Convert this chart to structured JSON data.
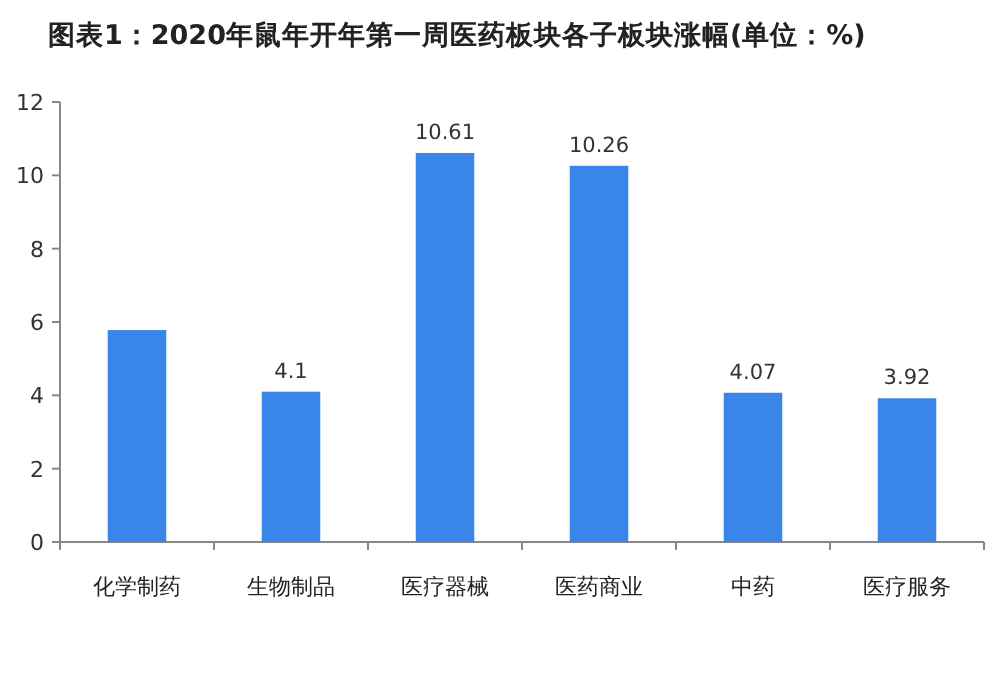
{
  "chart_data": {
    "type": "bar",
    "title": "图表1：2020年鼠年开年第一周医药板块各子板块涨幅(单位：%)",
    "categories": [
      "化学制药",
      "生物制品",
      "医疗器械",
      "医药商业",
      "中药",
      "医疗服务"
    ],
    "values": [
      5.78,
      4.1,
      10.61,
      10.26,
      4.07,
      3.92
    ],
    "value_labels": [
      null,
      "4.1",
      "10.61",
      "10.26",
      "4.07",
      "3.92"
    ],
    "color": "#3a86e8",
    "ylim": [
      0,
      12
    ],
    "yticks": [
      0,
      2,
      4,
      6,
      8,
      10,
      12
    ],
    "grid": false
  }
}
